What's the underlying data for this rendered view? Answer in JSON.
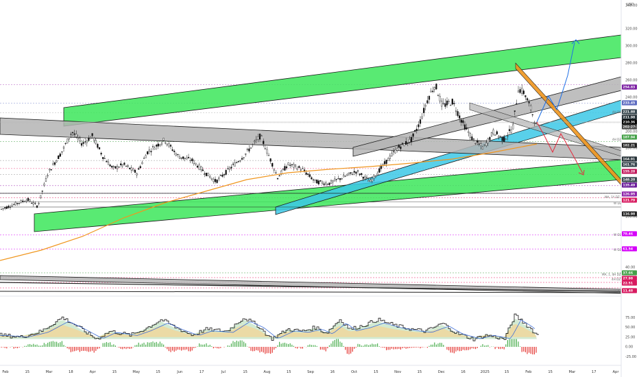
{
  "currency_label": "USD",
  "price_axis": {
    "ticks": [
      340,
      320,
      300,
      280,
      260,
      240,
      220,
      200,
      180,
      160,
      140,
      120,
      100,
      80,
      60,
      40
    ],
    "tick_labels": [
      "340.00",
      "320.00",
      "300.00",
      "280.00",
      "260.00",
      "240.00",
      "220.00",
      "200.00",
      "180.00",
      "160.00",
      "140.00",
      "120.00",
      "100.00",
      "80.00",
      "60.00",
      "40.00"
    ]
  },
  "osc_axis": {
    "ticks": [
      75,
      50,
      25,
      0,
      -25
    ],
    "tick_labels": [
      "75.00",
      "50.00",
      "25.00",
      "0.00",
      "-25.00"
    ]
  },
  "x_axis": {
    "labels": [
      "Feb",
      "15",
      "Mar",
      "18",
      "Apr",
      "15",
      "May",
      "15",
      "Jun",
      "17",
      "Jul",
      "15",
      "Aug",
      "15",
      "Sep",
      "16",
      "Oct",
      "15",
      "Nov",
      "15",
      "Dec",
      "16",
      "2025",
      "15",
      "Feb",
      "15",
      "Mar",
      "17",
      "Apr"
    ]
  },
  "price_badges": [
    {
      "text": "254.83",
      "color": "#7b1fa2"
    },
    {
      "text": "233.45",
      "color": "#5c6bc0"
    },
    {
      "text": "221.88",
      "color": "#37474f"
    },
    {
      "text": "211.98",
      "color": "#263238"
    },
    {
      "text": "210.36",
      "color": "#000000"
    },
    {
      "text": "202:27:18",
      "color": "#444444"
    },
    {
      "text": "187.94",
      "color": "#43a047"
    },
    {
      "text": "182.21",
      "color": "#212121"
    },
    {
      "text": "164.91",
      "color": "#263238"
    },
    {
      "text": "161.76",
      "color": "#37474f"
    },
    {
      "text": "155.28",
      "color": "#c2185b"
    },
    {
      "text": "148.20",
      "color": "#37474f"
    },
    {
      "text": "135.49",
      "color": "#6a1b9a"
    },
    {
      "text": "126.95",
      "color": "#8e24aa"
    },
    {
      "text": "121.79",
      "color": "#d81b60"
    },
    {
      "text": "116.98",
      "color": "#212121"
    },
    {
      "text": "78.46",
      "color": "#d500f9"
    },
    {
      "text": "61.54",
      "color": "#d500f9"
    },
    {
      "text": "37.66",
      "color": "#43a047"
    },
    {
      "text": "27.98",
      "color": "#d81b60"
    },
    {
      "text": "22.51",
      "color": "#d81b60"
    },
    {
      "text": "11.48",
      "color": "#d81b60"
    }
  ],
  "annotations": [
    "4H DZ",
    "4H DZ",
    "MA, 1Y DZ",
    "W DZ",
    "W DZ",
    "W DZ",
    "MA, 1, 4H DZ",
    "4H DZ",
    "W DZ"
  ],
  "colors": {
    "green_channel": "#3ce65a",
    "cyan_channel": "#3cc8e6",
    "gray_channel": "#b4b4b4",
    "ma_line": "#f0961e",
    "arrow_blue": "#1e6fe6",
    "arrow_red": "#e6283c",
    "wedge_orange": "#f0961e",
    "candles": "#111111",
    "hist_green": "#4caf50",
    "hist_red": "#e53935"
  },
  "chart_data": [
    {
      "type": "line",
      "pane": "price",
      "unit": "USD",
      "ylim": [
        35,
        345
      ],
      "x": [
        "Feb",
        "Mar",
        "Apr",
        "May",
        "Jun",
        "Jul",
        "Aug",
        "Sep",
        "Oct",
        "Nov",
        "Dec",
        "2025",
        "Feb",
        "Mar",
        "Apr"
      ],
      "series": [
        {
          "values": [
            108,
            135,
            175,
            145,
            165,
            170,
            150,
            137,
            155,
            200,
            230,
            205,
            255,
            null,
            null
          ]
        }
      ]
    },
    {
      "type": "area",
      "pane": "oscillator",
      "ylim": [
        -35,
        100
      ],
      "x": [
        "Feb",
        "Mar",
        "Apr",
        "May",
        "Jun",
        "Jul",
        "Aug",
        "Sep",
        "Oct",
        "Nov",
        "Dec",
        "2025",
        "Feb",
        "Mar",
        "Apr"
      ],
      "series": [
        {
          "values": [
            30,
            55,
            80,
            25,
            70,
            15,
            70,
            20,
            65,
            85,
            45,
            35,
            70,
            null,
            null
          ]
        }
      ]
    }
  ]
}
